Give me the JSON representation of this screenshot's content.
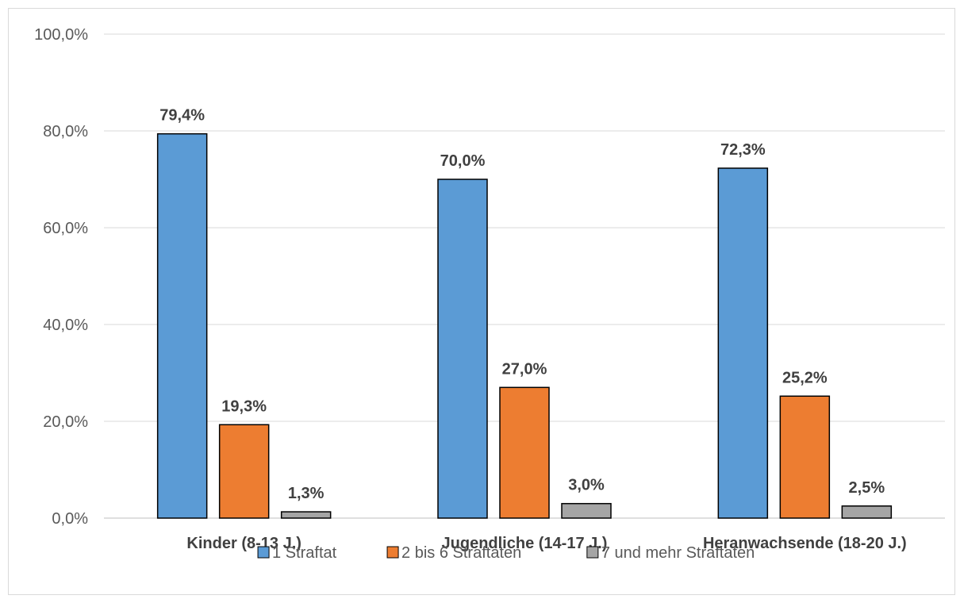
{
  "chart_data": {
    "type": "bar",
    "title": "",
    "xlabel": "",
    "ylabel": "",
    "categories": [
      "Kinder (8-13 J.)",
      "Jugendliche (14-17 J.)",
      "Heranwachsende (18-20 J.)"
    ],
    "series": [
      {
        "name": "1 Straftat",
        "values": [
          79.4,
          70.0,
          72.3
        ],
        "labels": [
          "79,4%",
          "70,0%",
          "72,3%"
        ],
        "color": "#5b9bd5"
      },
      {
        "name": "2 bis 6 Straftaten",
        "values": [
          19.3,
          27.0,
          25.2
        ],
        "labels": [
          "19,3%",
          "27,0%",
          "25,2%"
        ],
        "color": "#ed7d31"
      },
      {
        "name": "7 und mehr Straftaten",
        "values": [
          1.3,
          3.0,
          2.5
        ],
        "labels": [
          "1,3%",
          "3,0%",
          "2,5%"
        ],
        "color": "#a5a5a5"
      }
    ],
    "ylim": [
      0,
      100
    ],
    "y_ticks": [
      0,
      20,
      40,
      60,
      80,
      100
    ],
    "y_tick_labels": [
      "0,0%",
      "20,0%",
      "40,0%",
      "60,0%",
      "80,0%",
      "100,0%"
    ],
    "grid": true,
    "legend_position": "bottom"
  }
}
